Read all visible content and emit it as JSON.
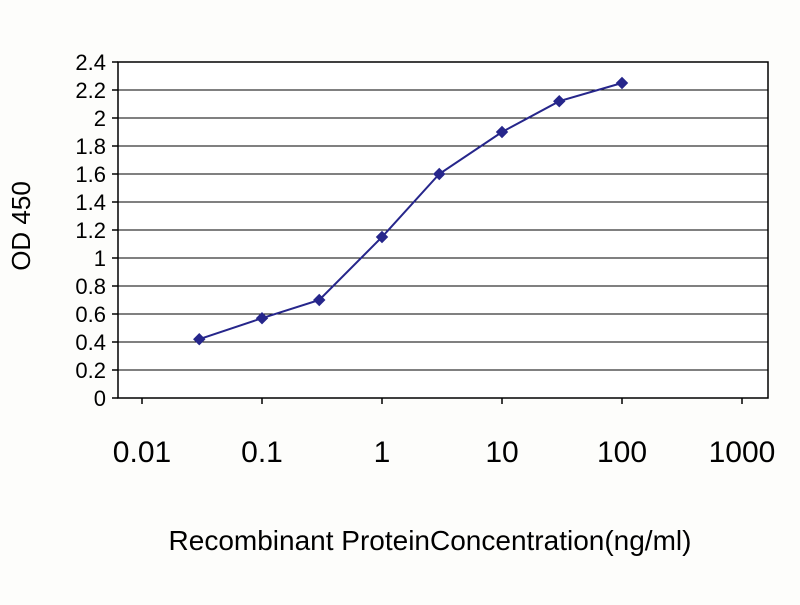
{
  "chart_data": {
    "type": "line",
    "title": "",
    "xlabel": "Recombinant ProteinConcentration(ng/ml)",
    "ylabel": "OD 450",
    "x_scale": "log",
    "xlim": [
      0.01,
      1000
    ],
    "ylim": [
      0,
      2.4
    ],
    "grid": "horizontal",
    "legend": "none",
    "x_ticks": {
      "values": [
        0.01,
        0.1,
        1,
        10,
        100,
        1000
      ],
      "labels": [
        "0.01",
        "0.1",
        "1",
        "10",
        "100",
        "1000"
      ]
    },
    "y_ticks": {
      "values": [
        0,
        0.2,
        0.4,
        0.6,
        0.8,
        1,
        1.2,
        1.4,
        1.6,
        1.8,
        2,
        2.2,
        2.4
      ],
      "labels": [
        "0",
        "0.2",
        "0.4",
        "0.6",
        "0.8",
        "1",
        "1.2",
        "1.4",
        "1.6",
        "1.8",
        "2",
        "2.2",
        "2.4"
      ]
    },
    "series": [
      {
        "name": "OD 450",
        "color": "#26268B",
        "marker": "diamond",
        "x": [
          0.03,
          0.1,
          0.3,
          1,
          3,
          10,
          30,
          100
        ],
        "y": [
          0.42,
          0.57,
          0.7,
          1.15,
          1.6,
          1.9,
          2.12,
          2.25
        ]
      }
    ],
    "colors": {
      "grid": "#000000",
      "axis": "#000000",
      "plot_background": "#ffffff",
      "text": "#000000"
    }
  }
}
